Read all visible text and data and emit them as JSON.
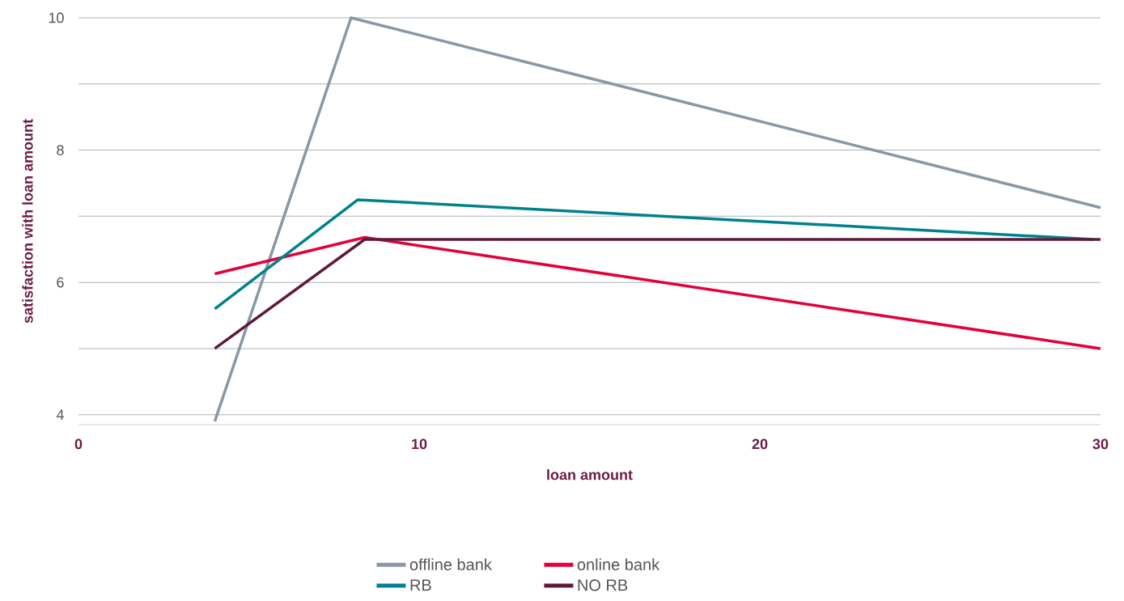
{
  "chart_data": {
    "type": "line",
    "xlabel": "loan amount",
    "ylabel": "satisfaction with loan amount",
    "xlim": [
      0,
      30
    ],
    "ylim": [
      3.85,
      10
    ],
    "xticks": [
      0,
      10,
      20,
      30
    ],
    "yticks": [
      4,
      {
        "value": 5,
        "label": null
      },
      6,
      {
        "value": 7,
        "label": null
      },
      8,
      {
        "value": 9,
        "label": null
      },
      10
    ],
    "grid": "y",
    "legend": "bottom",
    "marker": "none",
    "line_style": "solid",
    "series": [
      {
        "name": "offline bank",
        "color": "#8a97a6",
        "x": [
          4,
          8,
          30
        ],
        "values": [
          3.9,
          10,
          7.13
        ]
      },
      {
        "name": "online bank",
        "color": "#e4003a",
        "x": [
          4,
          8.4,
          30
        ],
        "values": [
          6.13,
          6.68,
          5.0
        ]
      },
      {
        "name": "RB",
        "color": "#00818f",
        "x": [
          4,
          8.2,
          29.8
        ],
        "values": [
          5.6,
          7.25,
          6.65
        ]
      },
      {
        "name": "NO RB",
        "color": "#5e1a3c",
        "x": [
          4,
          8.4,
          30
        ],
        "values": [
          5.0,
          6.65,
          6.65
        ]
      }
    ]
  }
}
